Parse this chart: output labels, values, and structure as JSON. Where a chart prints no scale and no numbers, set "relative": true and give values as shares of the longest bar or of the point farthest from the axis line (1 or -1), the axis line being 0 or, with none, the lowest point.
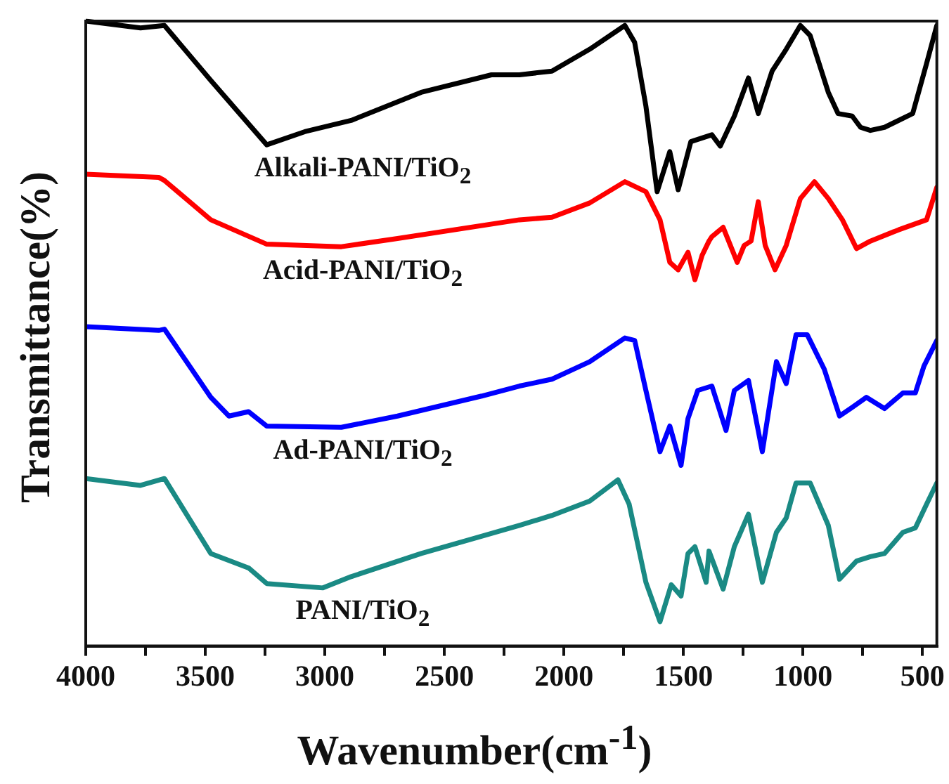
{
  "chart_data": {
    "type": "line",
    "relative": true,
    "xlabel": "Wavenumber(cm$^{-1}$)",
    "ylabel": "Transmittance(%)",
    "xlim": [
      4000,
      440
    ],
    "xticks": [
      4000,
      {
        "value": 3750,
        "label": null
      },
      3500,
      {
        "value": 3250,
        "label": null
      },
      3000,
      {
        "value": 2750,
        "label": null
      },
      2500,
      {
        "value": 2250,
        "label": null
      },
      2000,
      {
        "value": 1750,
        "label": null
      },
      1500,
      {
        "value": 1250,
        "label": null
      },
      1000,
      {
        "value": 750,
        "label": null
      },
      500
    ],
    "grid": false,
    "legend": false,
    "series": [
      {
        "name": "Alkali-PANI/TiO$_{2}$",
        "color": "#000000",
        "x": [
          4000,
          3771,
          3671,
          3477,
          3243,
          3084,
          2890,
          2597,
          2303,
          2186,
          2050,
          1892,
          1745,
          1704,
          1657,
          1610,
          1557,
          1522,
          1469,
          1381,
          1346,
          1287,
          1228,
          1187,
          1129,
          1070,
          1011,
          970,
          894,
          853,
          794,
          759,
          718,
          659,
          541,
          483,
          440
        ],
        "values": [
          1,
          0.989,
          0.993,
          0.905,
          0.802,
          0.823,
          0.841,
          0.886,
          0.914,
          0.914,
          0.92,
          0.955,
          0.993,
          0.966,
          0.864,
          0.727,
          0.791,
          0.73,
          0.807,
          0.818,
          0.8,
          0.848,
          0.909,
          0.852,
          0.92,
          0.955,
          0.993,
          0.977,
          0.886,
          0.852,
          0.848,
          0.83,
          0.825,
          0.83,
          0.852,
          0.932,
          0.993
        ]
      },
      {
        "name": "Acid-PANI/TiO$_{2}$",
        "color": "#ff0000",
        "x": [
          4000,
          3695,
          3671,
          3477,
          3243,
          2931,
          2696,
          2186,
          2050,
          1892,
          1745,
          1657,
          1598,
          1557,
          1522,
          1481,
          1452,
          1422,
          1393,
          1381,
          1334,
          1275,
          1246,
          1217,
          1187,
          1158,
          1117,
          1070,
          1011,
          952,
          894,
          835,
          776,
          718,
          600,
          483,
          440
        ],
        "values": [
          0.755,
          0.75,
          0.745,
          0.682,
          0.643,
          0.639,
          0.652,
          0.682,
          0.686,
          0.709,
          0.743,
          0.727,
          0.682,
          0.614,
          0.602,
          0.63,
          0.586,
          0.625,
          0.648,
          0.655,
          0.67,
          0.614,
          0.641,
          0.648,
          0.711,
          0.641,
          0.602,
          0.641,
          0.716,
          0.743,
          0.716,
          0.682,
          0.636,
          0.648,
          0.666,
          0.682,
          0.734
        ]
      },
      {
        "name": "Ad-PANI/TiO$_{2}$",
        "color": "#0000ff",
        "x": [
          4000,
          3695,
          3671,
          3477,
          3401,
          3319,
          3243,
          2931,
          2696,
          2344,
          2186,
          2050,
          1892,
          1745,
          1704,
          1657,
          1598,
          1557,
          1510,
          1481,
          1440,
          1381,
          1322,
          1287,
          1228,
          1170,
          1111,
          1070,
          1029,
          982,
          911,
          847,
          794,
          735,
          659,
          582,
          530,
          494,
          440
        ],
        "values": [
          0.511,
          0.505,
          0.507,
          0.398,
          0.368,
          0.375,
          0.352,
          0.35,
          0.368,
          0.4,
          0.416,
          0.427,
          0.455,
          0.493,
          0.489,
          0.409,
          0.311,
          0.352,
          0.289,
          0.364,
          0.409,
          0.416,
          0.345,
          0.409,
          0.425,
          0.311,
          0.455,
          0.42,
          0.498,
          0.498,
          0.443,
          0.368,
          0.382,
          0.398,
          0.38,
          0.405,
          0.405,
          0.448,
          0.489
        ]
      },
      {
        "name": "PANI/TiO$_{2}$",
        "color": "#1a8a84",
        "x": [
          4000,
          3771,
          3671,
          3477,
          3319,
          3243,
          3008,
          2890,
          2597,
          2186,
          2050,
          1892,
          1774,
          1727,
          1657,
          1598,
          1551,
          1510,
          1481,
          1452,
          1405,
          1393,
          1334,
          1287,
          1228,
          1170,
          1111,
          1070,
          1029,
          970,
          894,
          847,
          776,
          718,
          659,
          582,
          530,
          483,
          440
        ],
        "values": [
          0.268,
          0.257,
          0.268,
          0.148,
          0.125,
          0.1,
          0.093,
          0.111,
          0.148,
          0.193,
          0.209,
          0.232,
          0.266,
          0.227,
          0.102,
          0.039,
          0.098,
          0.08,
          0.148,
          0.159,
          0.102,
          0.152,
          0.091,
          0.159,
          0.211,
          0.102,
          0.182,
          0.205,
          0.261,
          0.261,
          0.193,
          0.107,
          0.136,
          0.143,
          0.148,
          0.182,
          0.189,
          0.227,
          0.261
        ]
      }
    ]
  }
}
